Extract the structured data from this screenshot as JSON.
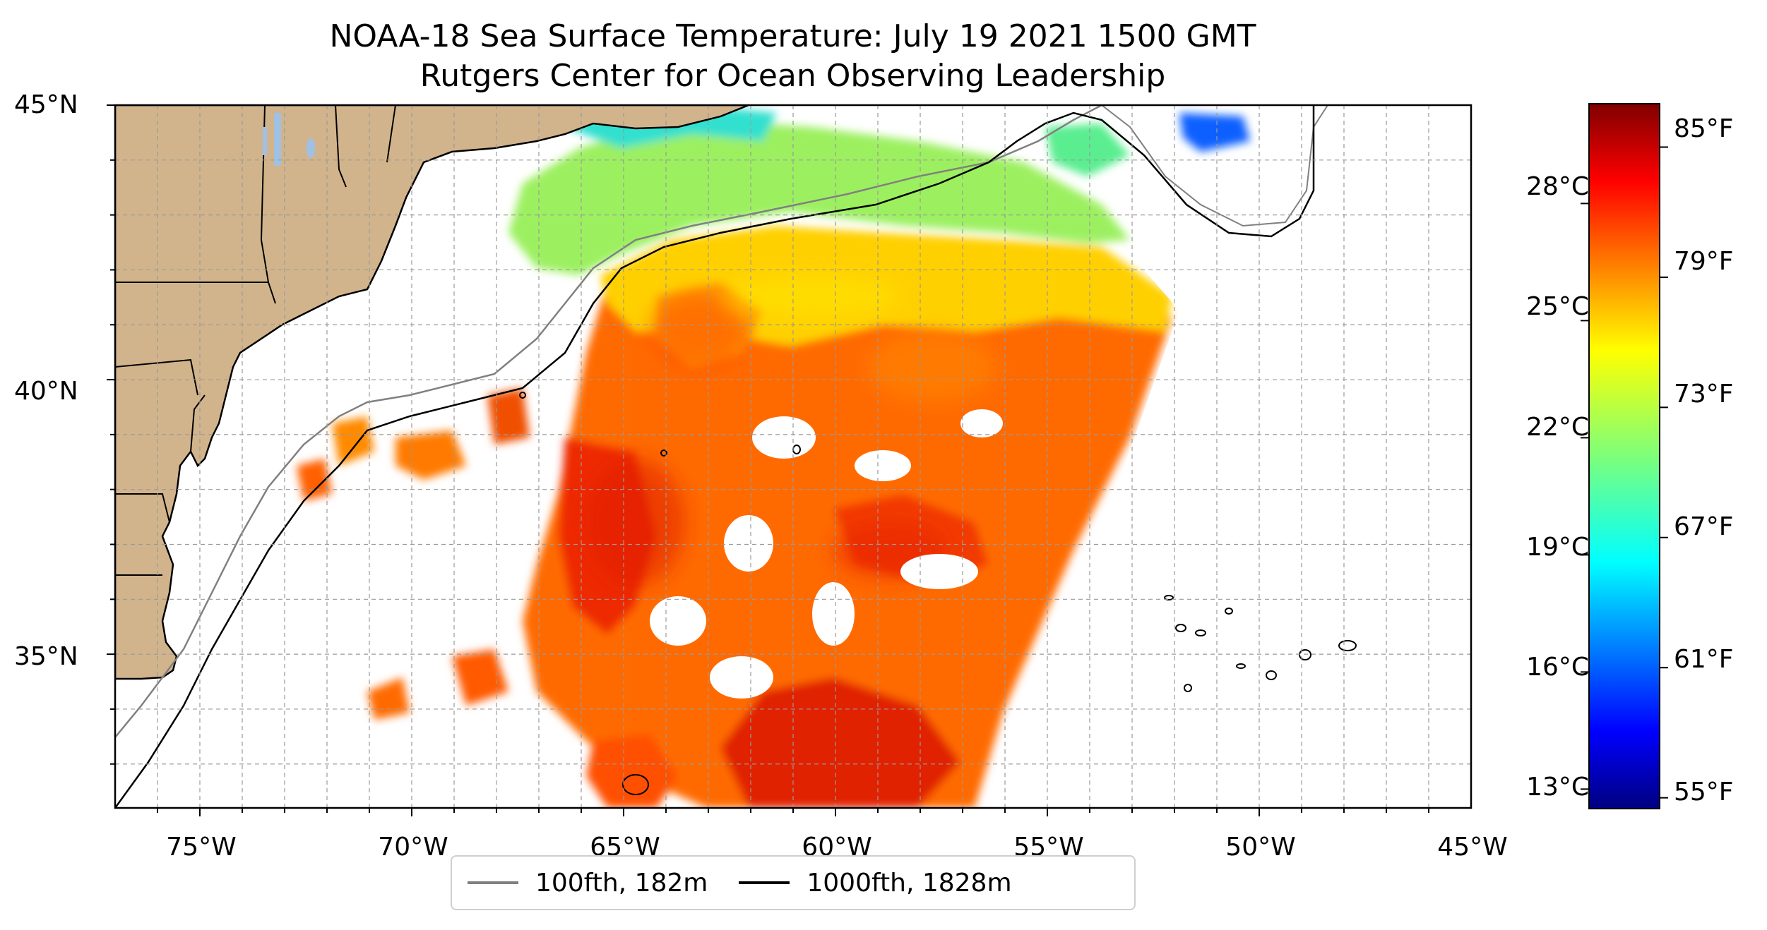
{
  "map": {
    "title": "NOAA-18 Sea Surface Temperature: July 19 2021 1500 GMT",
    "subtitle": "Rutgers Center for Ocean Observing Leadership",
    "lon_labels": [
      "75°W",
      "70°W",
      "65°W",
      "60°W",
      "55°W",
      "50°W",
      "45°W"
    ],
    "lat_labels": [
      "45°N",
      "40°N",
      "35°N"
    ],
    "extent": {
      "lon": [
        -77,
        -45
      ],
      "lat": [
        32.2,
        45
      ]
    },
    "land_color": "#d2b48c",
    "lake_color": "#9fc1e6",
    "gridlines": true
  },
  "colorbar": {
    "cmap": "jet",
    "celsius_labels": [
      "28°C",
      "25°C",
      "22°C",
      "19°C",
      "16°C",
      "13°C"
    ],
    "fahrenheit_labels": [
      "85°F",
      "79°F",
      "73°F",
      "67°F",
      "61°F",
      "55°F"
    ],
    "range_f": [
      54.5,
      87
    ]
  },
  "legend": {
    "items": [
      {
        "label": "100fth, 182m",
        "color": "#808080"
      },
      {
        "label": "1000fth, 1828m",
        "color": "#000000"
      }
    ]
  }
}
